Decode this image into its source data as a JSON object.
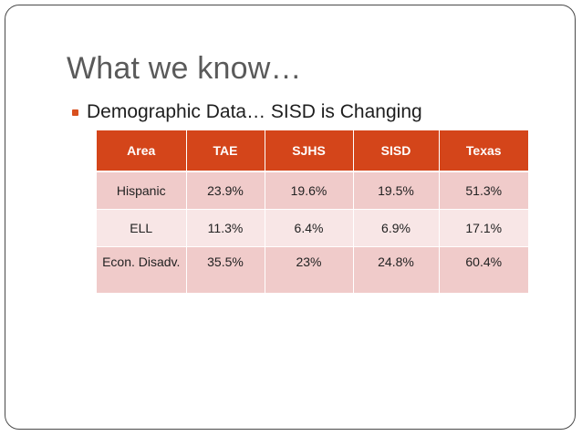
{
  "slide": {
    "title": "What we know…",
    "bullet": "Demographic Data… SISD is Changing",
    "accent_color": "#d4451a",
    "table": {
      "headers": [
        "Area",
        "TAE",
        "SJHS",
        "SISD",
        "Texas"
      ],
      "rows": [
        [
          "Hispanic",
          "23.9%",
          "19.6%",
          "19.5%",
          "51.3%"
        ],
        [
          "ELL",
          "11.3%",
          "6.4%",
          "6.9%",
          "17.1%"
        ],
        [
          "Econ. Disadv.",
          "35.5%",
          "23%",
          "24.8%",
          "60.4%"
        ]
      ]
    }
  }
}
